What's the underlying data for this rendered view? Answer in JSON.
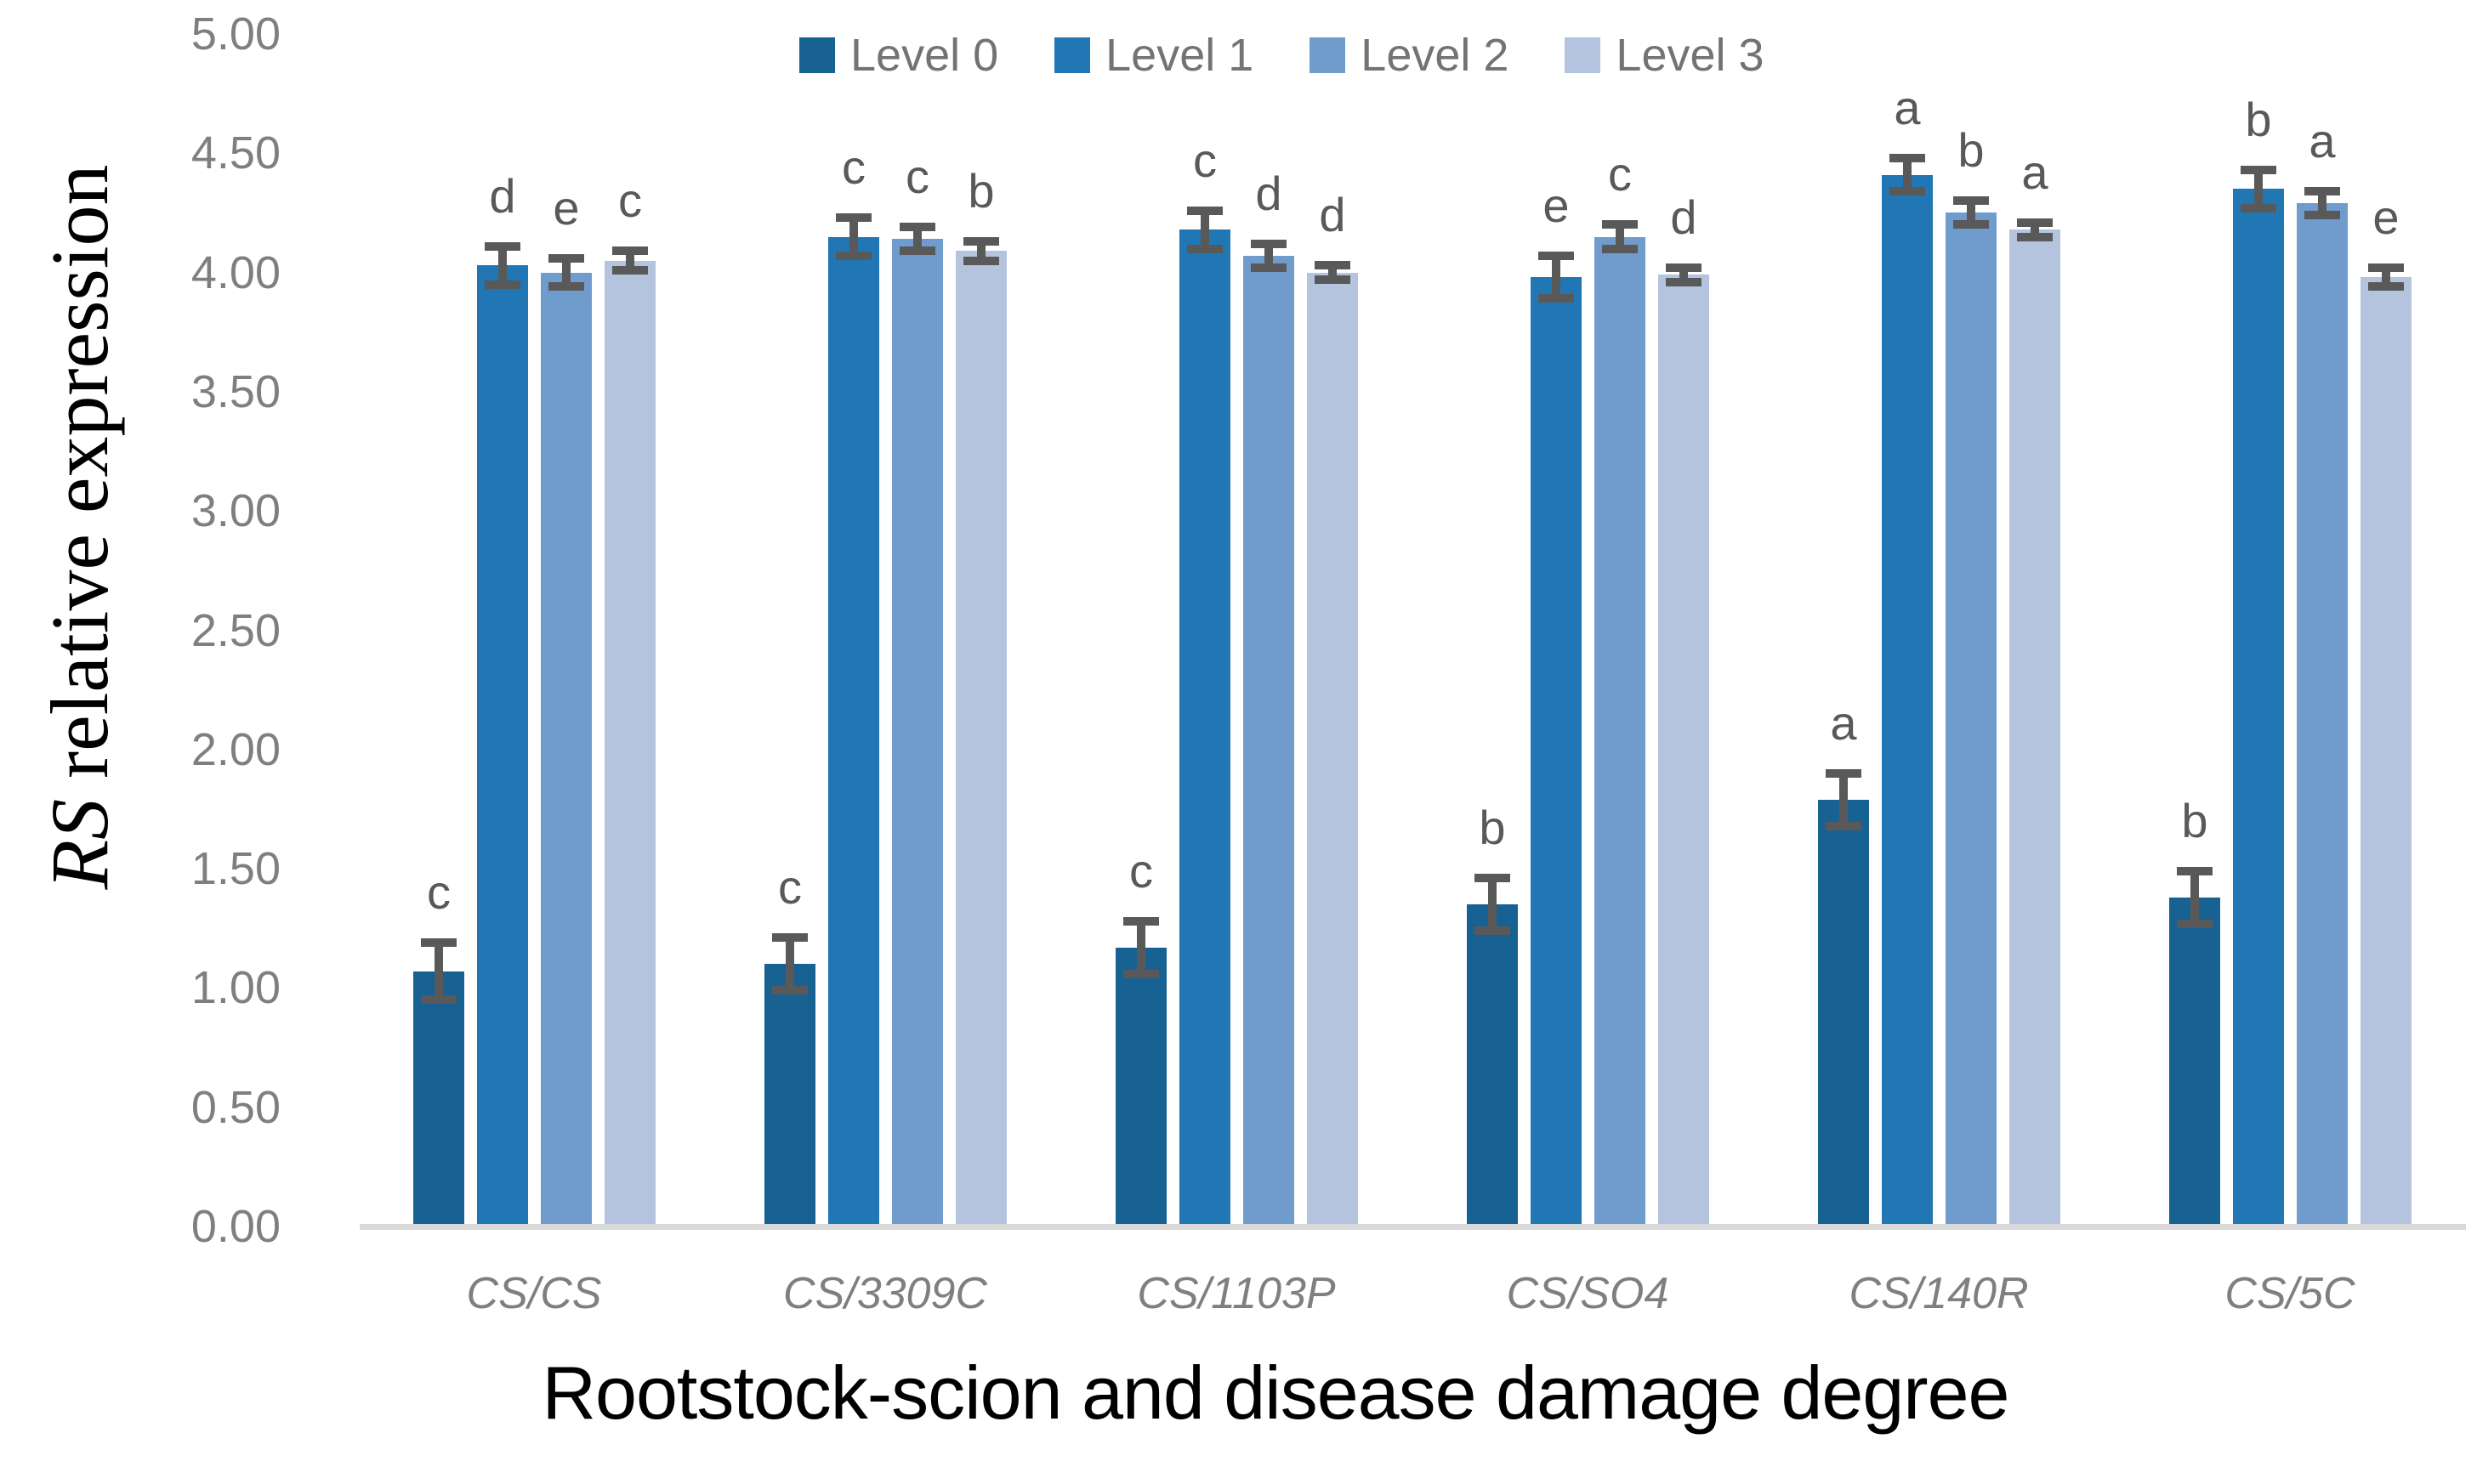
{
  "axes": {
    "y_title_italic": "RS",
    "y_title_rest": " relative expression",
    "x_title": "Rootstock-scion and disease damage degree",
    "y_ticks": [
      "0.00",
      "0.50",
      "1.00",
      "1.50",
      "2.00",
      "2.50",
      "3.00",
      "3.50",
      "4.00",
      "4.50",
      "5.00"
    ]
  },
  "legend": {
    "position": "top",
    "labels": [
      "Level 0",
      "Level 1",
      "Level 2",
      "Level 3"
    ]
  },
  "colors": {
    "level0": "#176292",
    "level1": "#2177b4",
    "level2": "#6f9ccc",
    "level3": "#b4c3de",
    "error_bar": "#595959",
    "axis_line": "#d9d9d9",
    "tick_text": "#7f7f7f",
    "letter_text": "#595959",
    "title_text": "#000000"
  },
  "chart_data": {
    "type": "bar",
    "title": "",
    "xlabel": "Rootstock-scion and disease damage degree",
    "ylabel": "RS relative expression",
    "ylim": [
      0,
      5
    ],
    "ytick_step": 0.5,
    "grid": false,
    "legend_position": "top",
    "categories": [
      "CS/CS",
      "CS/3309C",
      "CS/1103P",
      "CS/SO4",
      "CS/140R",
      "CS/5C"
    ],
    "series": [
      {
        "name": "Level 0",
        "color": "#176292",
        "values": [
          1.07,
          1.1,
          1.17,
          1.35,
          1.79,
          1.38
        ],
        "errors": [
          0.12,
          0.11,
          0.11,
          0.11,
          0.11,
          0.11
        ],
        "letters": [
          "c",
          "c",
          "c",
          "b",
          "a",
          "b"
        ]
      },
      {
        "name": "Level 1",
        "color": "#2177b4",
        "values": [
          4.03,
          4.15,
          4.18,
          3.98,
          4.41,
          4.35
        ],
        "errors": [
          0.08,
          0.08,
          0.08,
          0.09,
          0.07,
          0.08
        ],
        "letters": [
          "d",
          "c",
          "c",
          "e",
          "a",
          "b"
        ]
      },
      {
        "name": "Level 2",
        "color": "#6f9ccc",
        "values": [
          4.0,
          4.14,
          4.07,
          4.15,
          4.25,
          4.29
        ],
        "errors": [
          0.06,
          0.05,
          0.05,
          0.05,
          0.05,
          0.05
        ],
        "letters": [
          "e",
          "c",
          "d",
          "c",
          "b",
          "a"
        ]
      },
      {
        "name": "Level 3",
        "color": "#b4c3de",
        "values": [
          4.05,
          4.09,
          4.0,
          3.99,
          4.18,
          3.98
        ],
        "errors": [
          0.04,
          0.04,
          0.03,
          0.03,
          0.03,
          0.04
        ],
        "letters": [
          "c",
          "b",
          "d",
          "d",
          "a",
          "e"
        ]
      }
    ]
  }
}
